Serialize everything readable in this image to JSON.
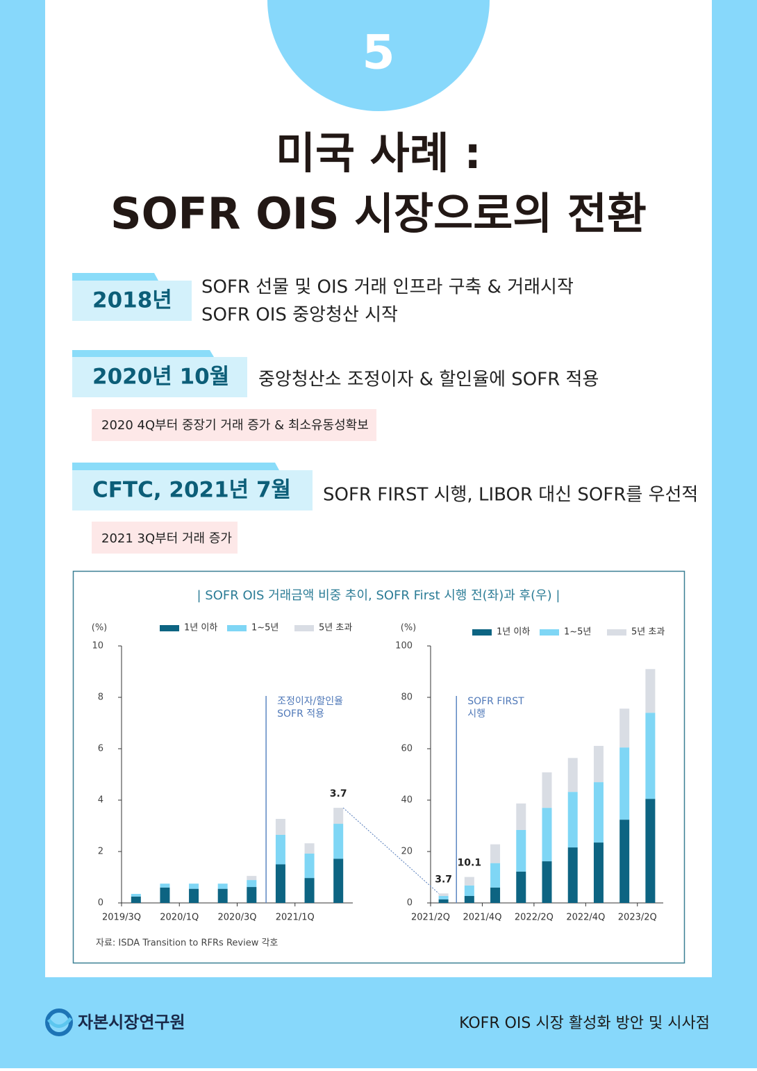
{
  "badge": "5",
  "title": [
    "미국 사례 :",
    "SOFR OIS 시장으로의 전환"
  ],
  "timeline": [
    {
      "tag": "2018년",
      "lines": [
        "SOFR 선물 및 OIS 거래 인프라 구축 & 거래시작",
        "SOFR OIS 중앙청산 시작"
      ]
    },
    {
      "tag": "2020년 10월",
      "lines": [
        "중앙청산소 조정이자 & 할인율에 SOFR 적용"
      ],
      "note": "2020 4Q부터 중장기 거래 증가 & 최소유동성확보"
    },
    {
      "tag": "CFTC, 2021년 7월",
      "lines": [
        "SOFR FIRST 시행, LIBOR 대신 SOFR를 우선적"
      ],
      "note": "2021 3Q부터 거래 증가"
    }
  ],
  "figure": {
    "title": "| SOFR OIS 거래금액 비중 추이, SOFR First 시행 전(좌)과 후(우) |",
    "source": "자료: ISDA Transition to RFRs Review 각호"
  },
  "chart_data": [
    {
      "type": "stacked_bar",
      "ylabel": "(%)",
      "categories": [
        "2019/3Q",
        null,
        "2020/1Q",
        null,
        "2020/3Q",
        null,
        "2021/1Q",
        null
      ],
      "series": [
        {
          "name": "1년 이하",
          "color": "#0d6482",
          "values": [
            0.25,
            0.6,
            0.55,
            0.55,
            0.62,
            1.5,
            0.97,
            1.72
          ]
        },
        {
          "name": "1~5년",
          "color": "#7fd6f5",
          "values": [
            0.1,
            0.15,
            0.2,
            0.2,
            0.27,
            1.15,
            0.95,
            1.36
          ]
        },
        {
          "name": "5년 초과",
          "color": "#d9dde4",
          "values": [
            0,
            0,
            0,
            0,
            0.16,
            0.62,
            0.4,
            0.62
          ]
        }
      ],
      "total_labels": [
        null,
        null,
        null,
        null,
        null,
        null,
        null,
        "3.7"
      ],
      "event_label": [
        "조정이자/할인율",
        "SOFR 적용"
      ],
      "ylim": [
        0,
        10
      ],
      "yticks": [
        0,
        2,
        4,
        6,
        8,
        10
      ]
    },
    {
      "type": "stacked_bar",
      "ylabel": "(%)",
      "categories": [
        "2021/2Q",
        null,
        "2021/4Q",
        null,
        "2022/2Q",
        null,
        "2022/4Q",
        null,
        "2023/2Q"
      ],
      "series": [
        {
          "name": "1년 이하",
          "color": "#0d6482",
          "values": [
            1.4,
            2.7,
            6,
            12.2,
            16.2,
            21.6,
            23.5,
            32.4,
            40.5
          ]
        },
        {
          "name": "1~5년",
          "color": "#7fd6f5",
          "values": [
            1.3,
            4.1,
            9.5,
            16.2,
            20.8,
            21.6,
            23.5,
            28.1,
            33.5
          ]
        },
        {
          "name": "5년 초과",
          "color": "#d9dde4",
          "values": [
            1.0,
            3.3,
            7.3,
            10.3,
            13.8,
            13.2,
            14.1,
            15.1,
            17
          ]
        }
      ],
      "total_labels": [
        "3.7",
        "10.1",
        null,
        null,
        null,
        null,
        null,
        null,
        null
      ],
      "event_label": [
        "SOFR FIRST",
        "시행"
      ],
      "ylim": [
        0,
        100
      ],
      "yticks": [
        0,
        20,
        40,
        60,
        80,
        100
      ]
    }
  ],
  "footer": {
    "logo": "자본시장연구원",
    "text": "KOFR OIS 시장 활성화 방안 및 시사점"
  }
}
